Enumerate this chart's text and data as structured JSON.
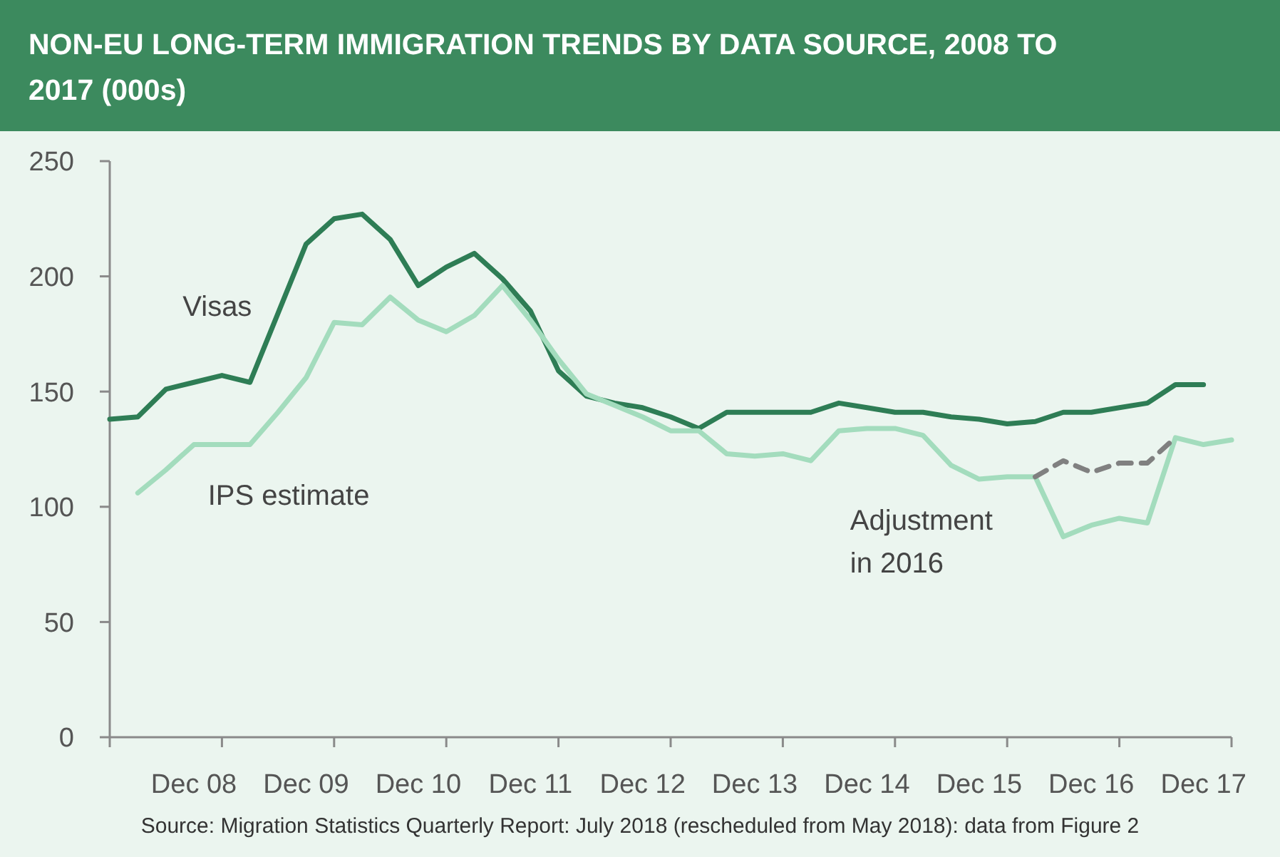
{
  "chart_data": {
    "type": "line",
    "title": "NON-EU LONG-TERM IMMIGRATION TRENDS BY DATA SOURCE, 2008 TO 2017 (000s)",
    "categories": [
      null,
      null,
      null,
      "Dec 08",
      null,
      null,
      null,
      "Dec 09",
      null,
      null,
      null,
      "Dec 10",
      null,
      null,
      null,
      "Dec 11",
      null,
      null,
      null,
      "Dec 12",
      null,
      null,
      null,
      "Dec 13",
      null,
      null,
      null,
      "Dec 14",
      null,
      null,
      null,
      "Dec 15",
      null,
      null,
      null,
      "Dec 16",
      null,
      null,
      null,
      "Dec 17",
      null
    ],
    "series": [
      {
        "name": "Visas",
        "color": "#2e7d55",
        "values": [
          138,
          139,
          151,
          154,
          157,
          154,
          184,
          214,
          225,
          227,
          216,
          196,
          204,
          210,
          199,
          185,
          159,
          148,
          145,
          143,
          139,
          134,
          141,
          141,
          141,
          141,
          145,
          143,
          141,
          141,
          139,
          138,
          136,
          137,
          141,
          141,
          143,
          145,
          153,
          153,
          null
        ]
      },
      {
        "name": "IPS estimate",
        "color": "#a3dcbd",
        "values": [
          null,
          106,
          116,
          127,
          127,
          127,
          141,
          156,
          180,
          179,
          191,
          181,
          176,
          183,
          196,
          181,
          164,
          149,
          144,
          139,
          133,
          133,
          123,
          122,
          123,
          120,
          133,
          134,
          134,
          131,
          118,
          112,
          113,
          113,
          87,
          92,
          95,
          93,
          130,
          127,
          129
        ]
      },
      {
        "color": "#808080",
        "line_style": "dashed",
        "values": [
          null,
          null,
          null,
          null,
          null,
          null,
          null,
          null,
          null,
          null,
          null,
          null,
          null,
          null,
          null,
          null,
          null,
          null,
          null,
          null,
          null,
          null,
          null,
          null,
          null,
          null,
          null,
          null,
          null,
          null,
          null,
          null,
          null,
          113,
          120,
          115,
          119,
          119,
          130,
          null,
          null
        ]
      }
    ],
    "ylim": [
      0,
      250
    ],
    "yticks": [
      0,
      50,
      100,
      150,
      200,
      250
    ],
    "grid": false,
    "annotations": [
      "Adjustment in 2016",
      "Source: Migration Statistics Quarterly Report: July 2018 (rescheduled from May 2018): data from Figure 2"
    ]
  }
}
